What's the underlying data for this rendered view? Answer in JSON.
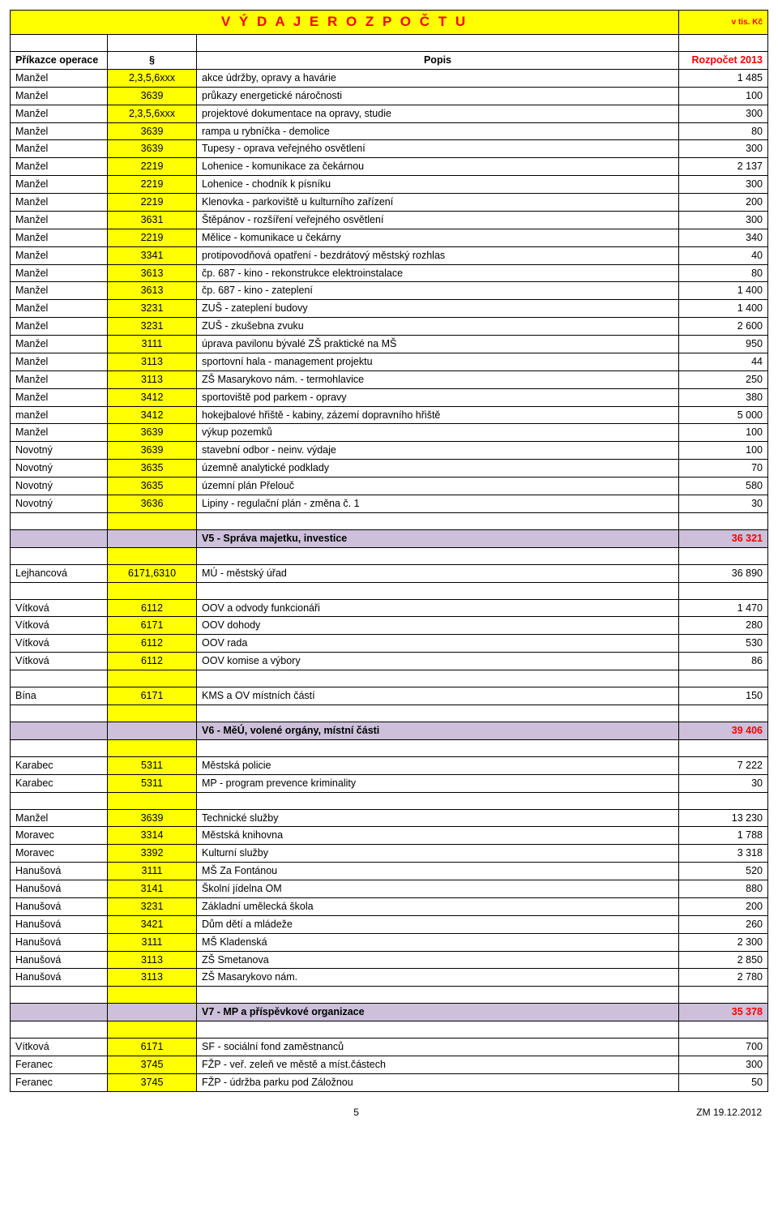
{
  "title": "V Ý D A J E   R O Z P O Č T U",
  "unit": "v tis. Kč",
  "header": {
    "colA": "Příkazce operace",
    "colB": "§",
    "colC": "Popis",
    "colD": "Rozpočet  2013"
  },
  "rows": [
    {
      "a": "Manžel",
      "b": "2,3,5,6xxx",
      "c": "akce údržby, opravy a havárie",
      "d": "1 485"
    },
    {
      "a": "Manžel",
      "b": "3639",
      "c": "průkazy energetické náročnosti",
      "d": "100"
    },
    {
      "a": "Manžel",
      "b": "2,3,5,6xxx",
      "c": "projektové dokumentace na opravy, studie",
      "d": "300"
    },
    {
      "a": "Manžel",
      "b": "3639",
      "c": "rampa u rybníčka - demolice",
      "d": "80"
    },
    {
      "a": "Manžel",
      "b": "3639",
      "c": "Tupesy - oprava veřejného osvětlení",
      "d": "300"
    },
    {
      "a": "Manžel",
      "b": "2219",
      "c": "Lohenice - komunikace za čekárnou",
      "d": "2 137"
    },
    {
      "a": "Manžel",
      "b": "2219",
      "c": "Lohenice - chodník k písníku",
      "d": "300"
    },
    {
      "a": "Manžel",
      "b": "2219",
      "c": "Klenovka - parkoviště u kulturního zařízení",
      "d": "200"
    },
    {
      "a": "Manžel",
      "b": "3631",
      "c": "Štěpánov - rozšíření veřejného osvětlení",
      "d": "300"
    },
    {
      "a": "Manžel",
      "b": "2219",
      "c": "Mělice - komunikace u čekárny",
      "d": "340"
    },
    {
      "a": "Manžel",
      "b": "3341",
      "c": "protipovodňová opatření - bezdrátový městský rozhlas",
      "d": "40"
    },
    {
      "a": "Manžel",
      "b": "3613",
      "c": "čp. 687 - kino - rekonstrukce elektroinstalace",
      "d": "80"
    },
    {
      "a": "Manžel",
      "b": "3613",
      "c": "čp. 687 - kino - zateplení",
      "d": "1 400"
    },
    {
      "a": "Manžel",
      "b": "3231",
      "c": "ZUŠ - zateplení budovy",
      "d": "1 400"
    },
    {
      "a": "Manžel",
      "b": "3231",
      "c": "ZUŠ -  zkušebna zvuku",
      "d": "2 600"
    },
    {
      "a": "Manžel",
      "b": "3111",
      "c": "úprava pavilonu bývalé ZŠ praktické na MŠ",
      "d": "950"
    },
    {
      "a": "Manžel",
      "b": "3113",
      "c": "sportovní hala - management projektu",
      "d": "44"
    },
    {
      "a": "Manžel",
      "b": "3113",
      "c": "ZŠ Masarykovo nám. - termohlavice",
      "d": "250"
    },
    {
      "a": "Manžel",
      "b": "3412",
      "c": "sportoviště pod parkem - opravy",
      "d": "380"
    },
    {
      "a": "manžel",
      "b": "3412",
      "c": "hokejbalové hřiště - kabiny, zázemí dopravního hřiště",
      "d": "5 000"
    },
    {
      "a": "Manžel",
      "b": "3639",
      "c": "výkup pozemků",
      "d": "100"
    },
    {
      "a": "Novotný",
      "b": "3639",
      "c": "stavební odbor - neinv. výdaje",
      "d": "100"
    },
    {
      "a": "Novotný",
      "b": "3635",
      "c": "územně analytické podklady",
      "d": "70"
    },
    {
      "a": "Novotný",
      "b": "3635",
      "c": "územní plán Přelouč",
      "d": "580"
    },
    {
      "a": "Novotný",
      "b": "3636",
      "c": "Lipiny - regulační plán - změna č. 1",
      "d": "30"
    }
  ],
  "section_v5": {
    "label": "V5 - Správa majetku, investice",
    "value": "36 321"
  },
  "rows2": [
    {
      "a": "Lejhancová",
      "b": "6171,6310",
      "c": "MÚ - městský úřad",
      "d": "36 890"
    }
  ],
  "rows3": [
    {
      "a": "Vítková",
      "b": "6112",
      "c": "OOV a odvody funkcionáři",
      "d": "1 470"
    },
    {
      "a": "Vítková",
      "b": "6171",
      "c": "OOV dohody",
      "d": "280"
    },
    {
      "a": "Vítková",
      "b": "6112",
      "c": "OOV rada",
      "d": "530"
    },
    {
      "a": "Vítková",
      "b": "6112",
      "c": "OOV komise a výbory",
      "d": "86"
    }
  ],
  "rows4": [
    {
      "a": "Bína",
      "b": "6171",
      "c": "KMS a OV místních částí",
      "d": "150"
    }
  ],
  "section_v6": {
    "label": "V6 - MěÚ, volené orgány, místní části",
    "value": "39 406"
  },
  "rows5": [
    {
      "a": "Karabec",
      "b": "5311",
      "c": "Městská policie",
      "d": "7 222"
    },
    {
      "a": "Karabec",
      "b": "5311",
      "c": "MP - program prevence kriminality",
      "d": "30"
    }
  ],
  "rows6": [
    {
      "a": "Manžel",
      "b": "3639",
      "c": "Technické služby",
      "d": "13 230"
    },
    {
      "a": "Moravec",
      "b": "3314",
      "c": "Městská knihovna",
      "d": "1 788"
    },
    {
      "a": "Moravec",
      "b": "3392",
      "c": "Kulturní služby",
      "d": "3 318"
    },
    {
      "a": "Hanušová",
      "b": "3111",
      "c": "MŠ Za Fontánou",
      "d": "520"
    },
    {
      "a": "Hanušová",
      "b": "3141",
      "c": "Školní jídelna OM",
      "d": "880"
    },
    {
      "a": "Hanušová",
      "b": "3231",
      "c": "Základní umělecká škola",
      "d": "200"
    },
    {
      "a": "Hanušová",
      "b": "3421",
      "c": "Dům dětí a mládeže",
      "d": "260"
    },
    {
      "a": "Hanušová",
      "b": "3111",
      "c": "MŠ Kladenská",
      "d": "2 300"
    },
    {
      "a": "Hanušová",
      "b": "3113",
      "c": "ZŠ Smetanova",
      "d": "2 850"
    },
    {
      "a": "Hanušová",
      "b": "3113",
      "c": "ZŠ Masarykovo nám.",
      "d": "2 780"
    }
  ],
  "section_v7": {
    "label": "V7 - MP a příspěvkové organizace",
    "value": "35 378"
  },
  "rows7": [
    {
      "a": "Vítková",
      "b": "6171",
      "c": "SF - sociální  fond zaměstnanců",
      "d": "700"
    },
    {
      "a": "Feranec",
      "b": "3745",
      "c": "FŽP - veř. zeleň ve městě a míst.částech",
      "d": "300"
    },
    {
      "a": "Feranec",
      "b": "3745",
      "c": "FŽP - údržba parku pod Záložnou",
      "d": "50"
    }
  ],
  "footer": {
    "page": "5",
    "date": "ZM 19.12.2012"
  },
  "colors": {
    "yellow": "#ffff00",
    "purple": "#ccc0da",
    "red": "#ff0000",
    "border": "#000000",
    "bg": "#ffffff"
  }
}
